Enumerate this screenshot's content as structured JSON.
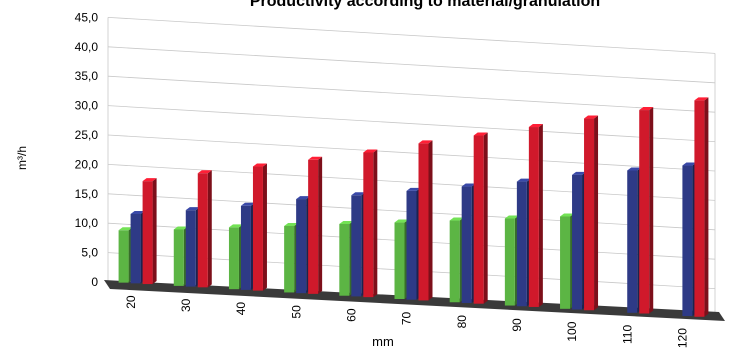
{
  "chart_data": {
    "type": "bar",
    "title": "Productivity according to material/granulation",
    "xlabel": "mm",
    "ylabel": "m³/h",
    "ylim": [
      0,
      45
    ],
    "yticks": [
      "0",
      "5,0",
      "10,0",
      "15,0",
      "20,0",
      "25,0",
      "30,0",
      "35,0",
      "40,0",
      "45,0"
    ],
    "grid": true,
    "categories": [
      "20",
      "30",
      "40",
      "50",
      "60",
      "70",
      "80",
      "90",
      "100",
      "110",
      "120"
    ],
    "series": [
      {
        "color": "#5cb544",
        "values": [
          8.9,
          9.6,
          10.5,
          11.3,
          12.2,
          13.0,
          13.9,
          14.8,
          15.7,
          null,
          null
        ]
      },
      {
        "color": "#2e3a86",
        "values": [
          11.8,
          13.0,
          14.3,
          16.0,
          17.2,
          18.5,
          19.8,
          21.2,
          22.9,
          24.2,
          25.6
        ]
      },
      {
        "color": "#d0192b",
        "values": [
          17.5,
          19.4,
          21.1,
          22.8,
          24.6,
          26.7,
          28.6,
          30.6,
          32.6,
          34.6,
          36.8
        ]
      }
    ]
  }
}
